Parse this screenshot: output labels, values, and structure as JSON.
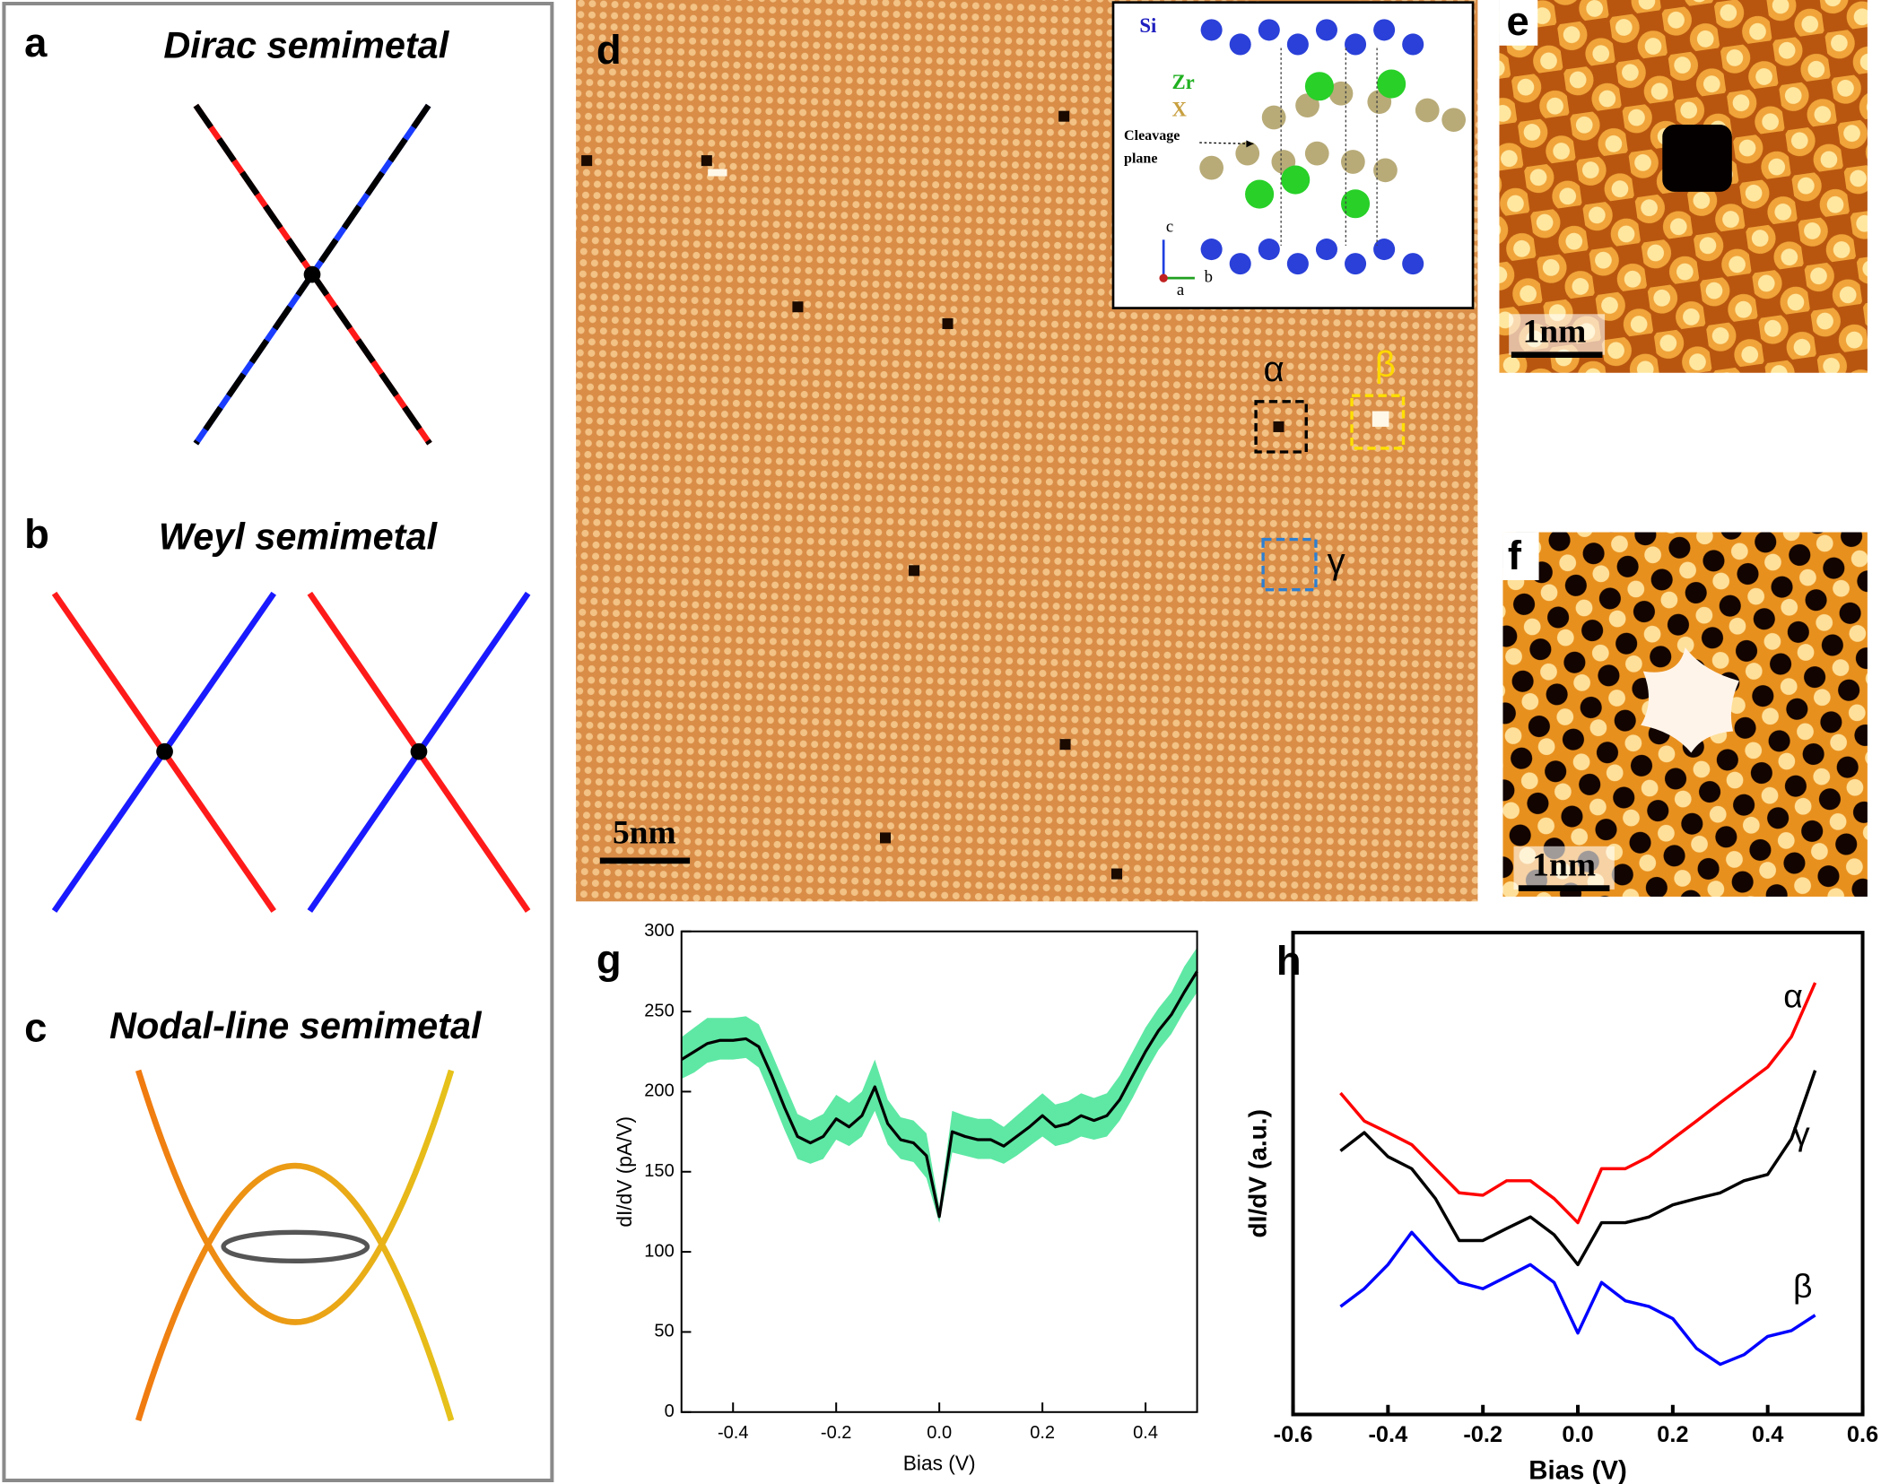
{
  "panels": {
    "a": {
      "label": "a",
      "title": "Dirac semimetal"
    },
    "b": {
      "label": "b",
      "title": "Weyl semimetal"
    },
    "c": {
      "label": "c",
      "title": "Nodal-line semimetal"
    },
    "d": {
      "label": "d",
      "scale_bar": "5nm",
      "sites": [
        "α",
        "β",
        "γ"
      ],
      "inset": {
        "atoms": [
          "Si",
          "Zr",
          "X"
        ],
        "cleavage": [
          "Cleavage",
          "plane"
        ],
        "axes": [
          "c",
          "a",
          "b"
        ]
      }
    },
    "e": {
      "label": "e",
      "scale_bar": "1nm"
    },
    "f": {
      "label": "f",
      "scale_bar": "1nm"
    }
  },
  "chart_data": [
    {
      "type": "line",
      "label": "g",
      "xlabel": "Bias (V)",
      "ylabel": "dI/dV (pA/V)",
      "x": [
        -0.5,
        -0.475,
        -0.45,
        -0.425,
        -0.4,
        -0.375,
        -0.35,
        -0.325,
        -0.3,
        -0.275,
        -0.25,
        -0.225,
        -0.2,
        -0.175,
        -0.15,
        -0.125,
        -0.1,
        -0.075,
        -0.05,
        -0.025,
        0,
        0.025,
        0.05,
        0.075,
        0.1,
        0.125,
        0.15,
        0.175,
        0.2,
        0.225,
        0.25,
        0.275,
        0.3,
        0.325,
        0.35,
        0.375,
        0.4,
        0.425,
        0.45,
        0.475,
        0.5
      ],
      "series": [
        {
          "color": "#000000",
          "values": [
            220,
            225,
            230,
            232,
            232,
            233,
            228,
            210,
            190,
            172,
            168,
            172,
            183,
            178,
            185,
            203,
            180,
            170,
            168,
            160,
            122,
            175,
            172,
            170,
            170,
            166,
            172,
            178,
            185,
            178,
            180,
            185,
            182,
            185,
            195,
            210,
            225,
            238,
            248,
            262,
            275
          ]
        }
      ],
      "band": {
        "color": "#5ee8a4",
        "low": [
          208,
          212,
          218,
          220,
          220,
          221,
          215,
          196,
          176,
          158,
          155,
          158,
          170,
          166,
          172,
          188,
          167,
          158,
          156,
          146,
          118,
          162,
          160,
          158,
          158,
          155,
          160,
          166,
          172,
          166,
          168,
          172,
          170,
          172,
          182,
          196,
          212,
          226,
          236,
          250,
          262
        ],
        "high": [
          234,
          240,
          246,
          246,
          246,
          247,
          242,
          224,
          205,
          186,
          182,
          186,
          198,
          193,
          200,
          220,
          195,
          184,
          182,
          174,
          128,
          188,
          185,
          183,
          183,
          178,
          185,
          192,
          199,
          192,
          194,
          199,
          196,
          199,
          210,
          225,
          240,
          252,
          262,
          278,
          290
        ]
      },
      "xlim": [
        -0.5,
        0.5
      ],
      "ylim": [
        0,
        300
      ],
      "xticks": [
        -0.4,
        -0.2,
        {
          "value": 0,
          "label": "0.0"
        },
        0.2,
        0.4
      ],
      "yticks": [
        0,
        50,
        100,
        150,
        200,
        250,
        300
      ]
    },
    {
      "type": "line",
      "label": "h",
      "xlabel": "Bias (V)",
      "ylabel": "dI/dV (a.u.)",
      "x": [
        -0.5,
        -0.45,
        -0.4,
        -0.35,
        -0.3,
        -0.25,
        -0.2,
        -0.15,
        -0.1,
        -0.05,
        0,
        0.05,
        0.1,
        0.15,
        0.2,
        0.25,
        0.3,
        0.35,
        0.4,
        0.45,
        0.5
      ],
      "series": [
        {
          "name": "α",
          "color": "#ff0000",
          "values": [
            66.7,
            60.9,
            58.5,
            56.0,
            51.0,
            46.0,
            45.5,
            48.5,
            48.5,
            44.8,
            39.8,
            51.0,
            51.0,
            53.5,
            57.2,
            60.9,
            64.7,
            68.4,
            72.1,
            78.4,
            89.6
          ]
        },
        {
          "name": "γ",
          "color": "#000000",
          "values": [
            54.7,
            58.5,
            53.5,
            51.0,
            44.8,
            36.1,
            36.1,
            38.6,
            41.0,
            37.3,
            31.1,
            39.8,
            39.8,
            41.0,
            43.5,
            44.8,
            46.0,
            48.5,
            49.8,
            57.2,
            71.4
          ]
        },
        {
          "name": "β",
          "color": "#0000ff",
          "values": [
            22.4,
            26.1,
            31.1,
            37.8,
            32.3,
            27.4,
            26.1,
            28.6,
            31.1,
            27.4,
            16.9,
            27.4,
            23.6,
            22.4,
            19.9,
            13.7,
            10.4,
            12.4,
            16.2,
            17.4,
            20.6
          ]
        }
      ],
      "xlim": [
        -0.6,
        0.6
      ],
      "ylim": [
        0,
        100
      ],
      "xticks": [
        -0.6,
        -0.4,
        -0.2,
        {
          "value": 0,
          "label": "0.0"
        },
        0.2,
        0.4,
        0.6
      ]
    }
  ]
}
